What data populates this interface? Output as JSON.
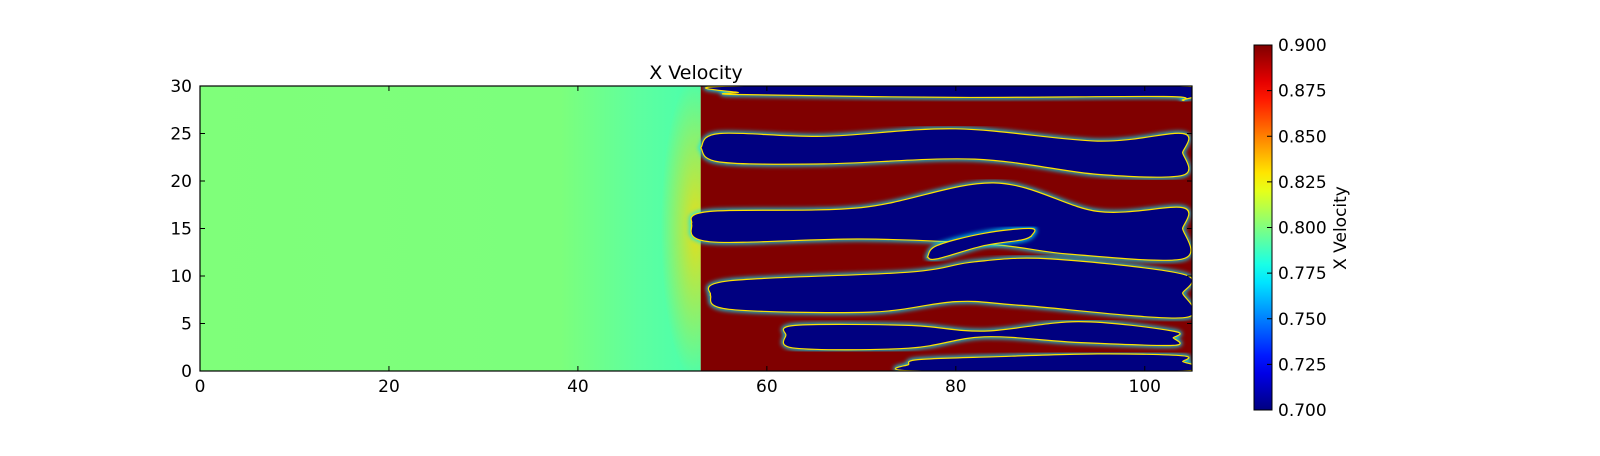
{
  "chart_data": {
    "type": "heatmap",
    "title": "X Velocity",
    "xlabel": "",
    "ylabel": "",
    "xlim": [
      0,
      105
    ],
    "ylim": [
      0,
      30
    ],
    "x_ticks": [
      "0",
      "20",
      "40",
      "60",
      "80",
      "100"
    ],
    "y_ticks": [
      "0",
      "5",
      "10",
      "15",
      "20",
      "25",
      "30"
    ],
    "colormap": "jet",
    "colorbar": {
      "label": "X Velocity",
      "range": [
        0.7,
        0.9
      ],
      "ticks": [
        "0.700",
        "0.725",
        "0.750",
        "0.775",
        "0.800",
        "0.825",
        "0.850",
        "0.875",
        "0.900"
      ]
    },
    "field_description": {
      "upstream_uniform_value": 0.79,
      "interface_x": 53,
      "high_value": 0.9,
      "low_value": 0.7,
      "low_velocity_bands": [
        {
          "left": [
            57,
            29.3
          ],
          "right": [
            104,
            28.5
          ],
          "upper_edge": [
            [
              57,
              30
            ],
            [
              104,
              30
            ]
          ],
          "lower_edge": [
            [
              57,
              29.1
            ],
            [
              80,
              28.8
            ],
            [
              102,
              28.9
            ],
            [
              104,
              28.5
            ]
          ]
        },
        {
          "left": [
            53,
            23.5
          ],
          "right": [
            104,
            23.0
          ],
          "upper_edge": [
            [
              55,
              25.0
            ],
            [
              66,
              24.7
            ],
            [
              80,
              25.5
            ],
            [
              95,
              24.2
            ],
            [
              104,
              25.0
            ]
          ],
          "lower_edge": [
            [
              55,
              22.0
            ],
            [
              66,
              21.8
            ],
            [
              82,
              22.3
            ],
            [
              95,
              20.7
            ],
            [
              104,
              20.6
            ]
          ]
        },
        {
          "left": [
            52,
            15.5
          ],
          "right": [
            104,
            15.0
          ],
          "upper_edge": [
            [
              54,
              16.8
            ],
            [
              70,
              17.2
            ],
            [
              84,
              19.8
            ],
            [
              95,
              16.8
            ],
            [
              104,
              17.2
            ]
          ],
          "lower_edge": [
            [
              54,
              13.6
            ],
            [
              70,
              13.9
            ],
            [
              84,
              13.3
            ],
            [
              92,
              12.3
            ],
            [
              104,
              11.8
            ]
          ]
        },
        {
          "left": [
            77,
            12.0
          ],
          "right": [
            88,
            14.2
          ],
          "upper_edge": [
            [
              78,
              13.2
            ],
            [
              83,
              14.5
            ],
            [
              88,
              15.0
            ]
          ],
          "lower_edge": [
            [
              78,
              11.8
            ],
            [
              83,
              13.2
            ],
            [
              87,
              13.8
            ]
          ]
        },
        {
          "left": [
            54,
            8.0
          ],
          "right": [
            104,
            8.2
          ],
          "upper_edge": [
            [
              56,
              9.5
            ],
            [
              75,
              10.4
            ],
            [
              82,
              11.5
            ],
            [
              90,
              11.8
            ],
            [
              104,
              10.2
            ]
          ],
          "lower_edge": [
            [
              56,
              6.5
            ],
            [
              71,
              6.2
            ],
            [
              80,
              7.3
            ],
            [
              87,
              6.9
            ],
            [
              104,
              5.6
            ]
          ]
        },
        {
          "left": [
            62,
            3.8
          ],
          "right": [
            103,
            3.5
          ],
          "upper_edge": [
            [
              63,
              4.8
            ],
            [
              75,
              4.8
            ],
            [
              83,
              4.2
            ],
            [
              93,
              5.2
            ],
            [
              103,
              4.2
            ]
          ],
          "lower_edge": [
            [
              63,
              2.4
            ],
            [
              75,
              2.4
            ],
            [
              83,
              3.6
            ],
            [
              93,
              3.0
            ],
            [
              103,
              2.7
            ]
          ]
        },
        {
          "left": [
            75,
            0.7
          ],
          "right": [
            104,
            1.0
          ],
          "upper_edge": [
            [
              76,
              1.2
            ],
            [
              84,
              1.5
            ],
            [
              95,
              1.8
            ],
            [
              104,
              1.6
            ]
          ],
          "lower_edge": [
            [
              76,
              0
            ],
            [
              104,
              0
            ]
          ]
        }
      ]
    }
  }
}
